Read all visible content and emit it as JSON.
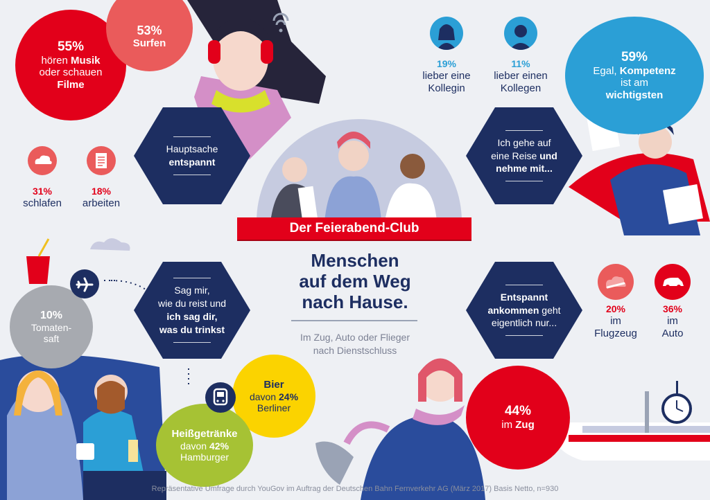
{
  "colors": {
    "background": "#eef0f4",
    "navy": "#1d2e61",
    "red": "#e2001a",
    "coral": "#ea5b5b",
    "sky": "#2b9fd6",
    "gray": "#a7aab0",
    "yellow": "#fbd300",
    "olive": "#a6c234"
  },
  "title": {
    "banner": "Der Feierabend-Club",
    "heading_l1": "Menschen",
    "heading_l2": "auf dem Weg",
    "heading_l3": "nach Hause.",
    "sub_l1": "Im Zug, Auto oder Flieger",
    "sub_l2": "nach Dienstschluss"
  },
  "hex": {
    "relax": {
      "l1": "Hauptsache",
      "l2": "entspannt"
    },
    "trip": {
      "l1": "Ich gehe auf",
      "l2": "eine Reise",
      "l2b": "und",
      "l3": "nehme mit..."
    },
    "drink": {
      "l1": "Sag mir,",
      "l2": "wie du reist und",
      "l3": "ich sag dir,",
      "l4": "was du trinkst"
    },
    "arrive": {
      "l1": "Entspannt",
      "l2": "ankommen",
      "l2b": "geht",
      "l3": "eigentlich nur..."
    }
  },
  "stats": {
    "music": {
      "pct": "55%",
      "l1": "hören",
      "l1b": "Musik",
      "l2": "oder schauen",
      "l3": "Filme"
    },
    "surf": {
      "pct": "53%",
      "label": "Surfen"
    },
    "sleep": {
      "pct": "31%",
      "label": "schlafen",
      "icon": "sleep-cloud-icon"
    },
    "work": {
      "pct": "18%",
      "label": "arbeiten",
      "icon": "document-icon"
    },
    "female": {
      "pct": "19%",
      "l1": "lieber eine",
      "l2": "Kollegin",
      "icon": "woman-avatar-icon"
    },
    "male": {
      "pct": "11%",
      "l1": "lieber einen",
      "l2": "Kollegen",
      "icon": "man-avatar-icon"
    },
    "competence": {
      "pct": "59%",
      "l1": "Egal,",
      "l1b": "Kompetenz",
      "l2": "ist am",
      "l3": "wichtigsten"
    },
    "tomato": {
      "pct": "10%",
      "l1": "Tomaten-",
      "l2": "saft",
      "icon": "airplane-icon"
    },
    "beer": {
      "l1": "Bier",
      "l2a": "davon",
      "l2b": "24%",
      "l3": "Berliner"
    },
    "hot": {
      "l1": "Heißgetränke",
      "l2a": "davon",
      "l2b": "42%",
      "l3": "Hamburger",
      "icon": "train-icon"
    },
    "plane": {
      "pct": "20%",
      "l1": "im",
      "l2": "Flugzeug",
      "icon": "plane-cloud-icon"
    },
    "car": {
      "pct": "36%",
      "l1": "im",
      "l2": "Auto",
      "icon": "car-icon"
    },
    "train": {
      "pct": "44%",
      "l1": "im",
      "l1b": "Zug"
    }
  },
  "footer": "Repräsentative Umfrage durch YouGov im Auftrag der Deutschen Bahn Fernverkehr AG (März 2017) Basis Netto, n=930"
}
